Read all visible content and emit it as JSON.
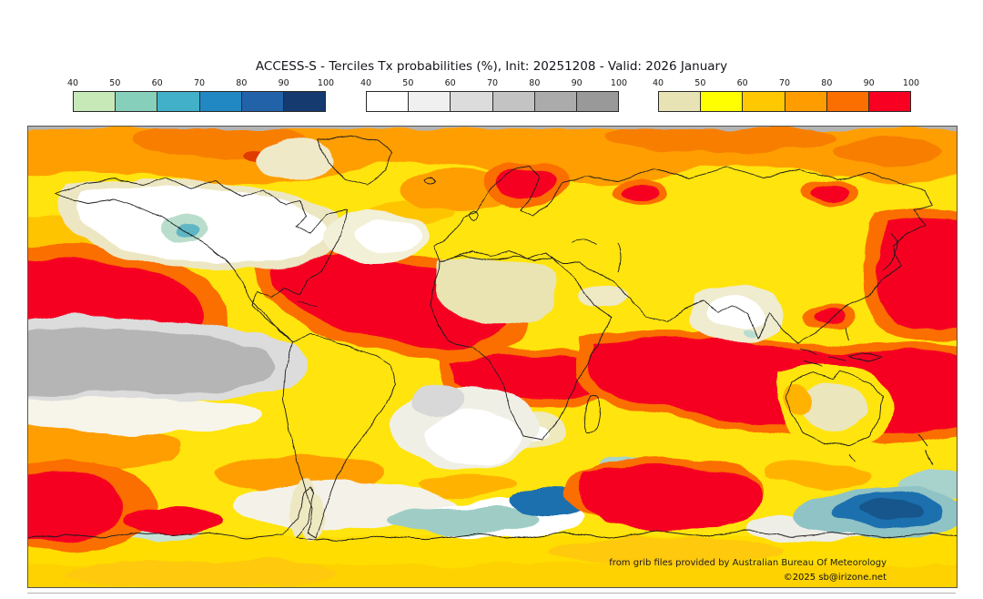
{
  "figure": {
    "title": "ACCESS-S - Terciles Tx probabilities (%), Init: 20251208 - Valid: 2026 January"
  },
  "colorbars": {
    "tick_labels": [
      "40",
      "50",
      "60",
      "70",
      "80",
      "90",
      "100"
    ],
    "bars": [
      {
        "name": "below-normal-scale",
        "colors": [
          "#c7e9b8",
          "#86cfba",
          "#41b0c8",
          "#2188c4",
          "#2262a8",
          "#143a70"
        ]
      },
      {
        "name": "near-normal-scale",
        "colors": [
          "#ffffff",
          "#f0f0f0",
          "#dcdcdc",
          "#c3c3c3",
          "#ababab",
          "#999999"
        ]
      },
      {
        "name": "above-normal-scale",
        "colors": [
          "#e8e3b4",
          "#ffff00",
          "#ffc800",
          "#ff9d00",
          "#fb6e00",
          "#f80021"
        ]
      }
    ]
  },
  "map": {
    "attribution": "from grib files provided by Australian Bureau Of Meteorology",
    "copyright": "©2025 sb@irizone.net"
  }
}
